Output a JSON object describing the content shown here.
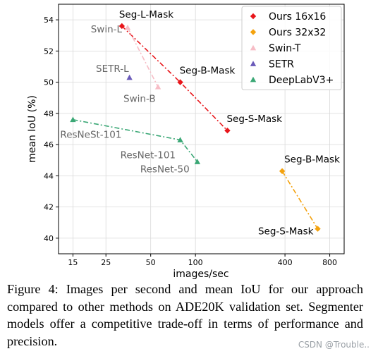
{
  "chart_data": {
    "type": "scatter",
    "xlabel": "images/sec",
    "ylabel": "mean IoU (%)",
    "xscale": "log",
    "xlim": [
      12,
      1000
    ],
    "ylim": [
      39,
      55
    ],
    "x_ticks": [
      15,
      25,
      50,
      100,
      400,
      800
    ],
    "y_ticks": [
      40,
      42,
      44,
      46,
      48,
      50,
      52,
      54
    ],
    "legend_position": "top-right",
    "series": [
      {
        "name": "Ours 16x16",
        "color": "#e8161b",
        "marker": "diamond",
        "line": "dashdot",
        "points": [
          {
            "x": 32,
            "y": 53.6,
            "label": "Seg-L-Mask"
          },
          {
            "x": 79,
            "y": 50.0,
            "label": "Seg-B-Mask"
          },
          {
            "x": 164,
            "y": 46.9,
            "label": "Seg-S-Mask"
          }
        ]
      },
      {
        "name": "Ours 32x32",
        "color": "#f4a20e",
        "marker": "diamond",
        "line": "dashdot",
        "points": [
          {
            "x": 383,
            "y": 44.3,
            "label": "Seg-B-Mask"
          },
          {
            "x": 664,
            "y": 40.6,
            "label": "Seg-S-Mask"
          }
        ]
      },
      {
        "name": "Swin-T",
        "color": "#f7bdc6",
        "marker": "triangle",
        "line": "dashdot",
        "points": [
          {
            "x": 35,
            "y": 53.5,
            "label": "Swin-L"
          },
          {
            "x": 56,
            "y": 49.7,
            "label": "Swin-B"
          }
        ]
      },
      {
        "name": "SETR",
        "color": "#6a5ab9",
        "marker": "triangle",
        "line": "none",
        "points": [
          {
            "x": 36,
            "y": 50.3,
            "label": "SETR-L"
          }
        ]
      },
      {
        "name": "DeepLabV3+",
        "color": "#3aa775",
        "marker": "triangle",
        "line": "dashdot",
        "points": [
          {
            "x": 15,
            "y": 47.6,
            "label": "ResNeSt-101"
          },
          {
            "x": 79,
            "y": 46.3,
            "label": "ResNet-101"
          },
          {
            "x": 103,
            "y": 44.9,
            "label": "ResNet-50"
          }
        ]
      }
    ]
  },
  "caption": "Figure 4: Images per second and mean IoU for our approach compared to other methods on ADE20K validation set. Segmenter models offer a competitive trade-off in terms of performance and precision.",
  "watermark": "CSDN @Trouble.."
}
